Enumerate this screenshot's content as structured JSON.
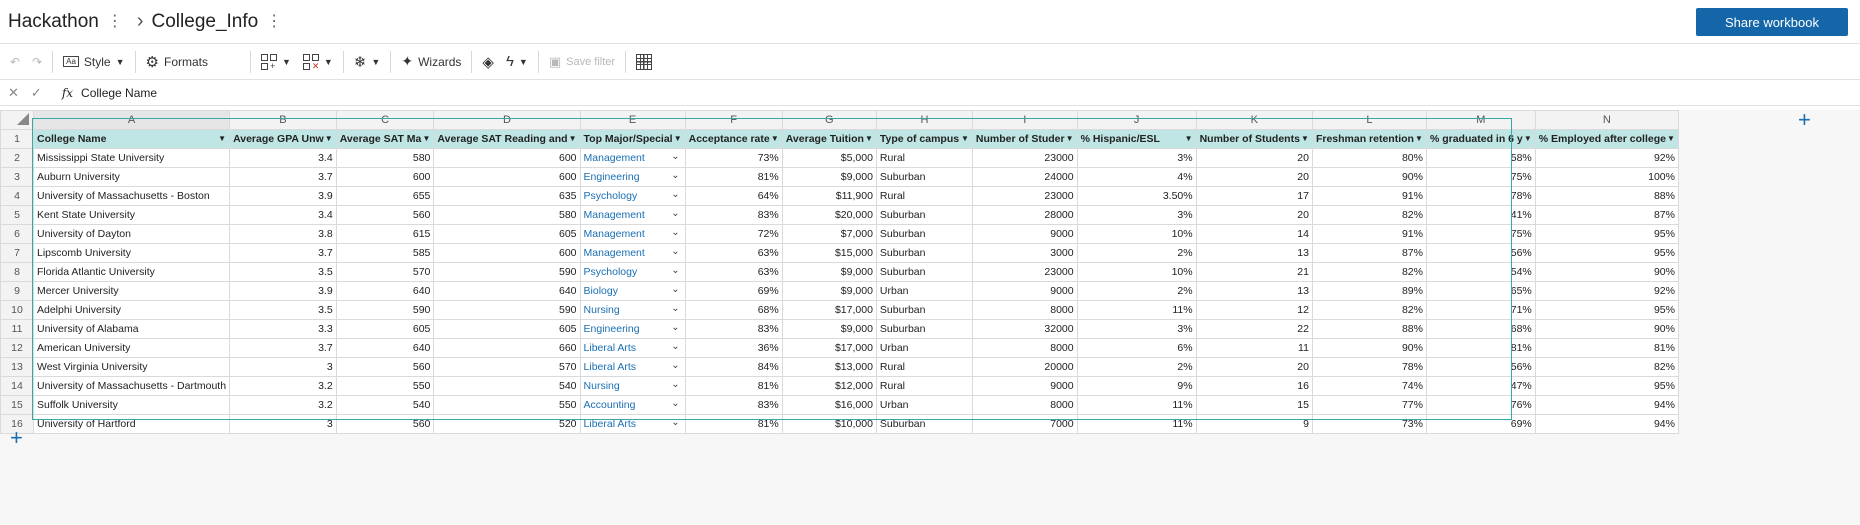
{
  "breadcrumb": {
    "parent": "Hackathon",
    "current": "College_Info"
  },
  "share_label": "Share workbook",
  "toolbar": {
    "style_label": "Style",
    "formats_label": "Formats",
    "wizards_label": "Wizards",
    "save_filter_label": "Save filter"
  },
  "formula_bar": {
    "fx": "fx",
    "value": "College Name"
  },
  "columns": [
    "A",
    "B",
    "C",
    "D",
    "E",
    "F",
    "G",
    "H",
    "I",
    "J",
    "K",
    "L",
    "M",
    "N"
  ],
  "headers": [
    "College Name",
    "Average GPA Unw",
    "Average SAT Ma",
    "Average SAT Reading and",
    "Top Major/Special",
    "Acceptance rate",
    "Average Tuition",
    "Type of campus",
    "Number of Studer",
    "% Hispanic/ESL",
    "Number of Students",
    "Freshman retention",
    "% graduated in 6 y",
    "% Employed after college"
  ],
  "rows": [
    [
      "Mississippi State University",
      "3.4",
      "580",
      "600",
      "Management",
      "73%",
      "$5,000",
      "Rural",
      "23000",
      "3%",
      "20",
      "80%",
      "58%",
      "92%"
    ],
    [
      "Auburn University",
      "3.7",
      "600",
      "600",
      "Engineering",
      "81%",
      "$9,000",
      "Suburban",
      "24000",
      "4%",
      "20",
      "90%",
      "75%",
      "100%"
    ],
    [
      "University of Massachusetts - Boston",
      "3.9",
      "655",
      "635",
      "Psychology",
      "64%",
      "$11,900",
      "Rural",
      "23000",
      "3.50%",
      "17",
      "91%",
      "78%",
      "88%"
    ],
    [
      "Kent State University",
      "3.4",
      "560",
      "580",
      "Management",
      "83%",
      "$20,000",
      "Suburban",
      "28000",
      "3%",
      "20",
      "82%",
      "41%",
      "87%"
    ],
    [
      "University of Dayton",
      "3.8",
      "615",
      "605",
      "Management",
      "72%",
      "$7,000",
      "Suburban",
      "9000",
      "10%",
      "14",
      "91%",
      "75%",
      "95%"
    ],
    [
      "Lipscomb University",
      "3.7",
      "585",
      "600",
      "Management",
      "63%",
      "$15,000",
      "Suburban",
      "3000",
      "2%",
      "13",
      "87%",
      "56%",
      "95%"
    ],
    [
      "Florida Atlantic University",
      "3.5",
      "570",
      "590",
      "Psychology",
      "63%",
      "$9,000",
      "Suburban",
      "23000",
      "10%",
      "21",
      "82%",
      "54%",
      "90%"
    ],
    [
      "Mercer University",
      "3.9",
      "640",
      "640",
      "Biology",
      "69%",
      "$9,000",
      "Urban",
      "9000",
      "2%",
      "13",
      "89%",
      "65%",
      "92%"
    ],
    [
      "Adelphi University",
      "3.5",
      "590",
      "590",
      "Nursing",
      "68%",
      "$17,000",
      "Suburban",
      "8000",
      "11%",
      "12",
      "82%",
      "71%",
      "95%"
    ],
    [
      "University of Alabama",
      "3.3",
      "605",
      "605",
      "Engineering",
      "83%",
      "$9,000",
      "Suburban",
      "32000",
      "3%",
      "22",
      "88%",
      "68%",
      "90%"
    ],
    [
      "American University",
      "3.7",
      "640",
      "660",
      "Liberal Arts",
      "36%",
      "$17,000",
      "Urban",
      "8000",
      "6%",
      "11",
      "90%",
      "81%",
      "81%"
    ],
    [
      "West Virginia University",
      "3",
      "560",
      "570",
      "Liberal Arts",
      "84%",
      "$13,000",
      "Rural",
      "20000",
      "2%",
      "20",
      "78%",
      "56%",
      "82%"
    ],
    [
      "University of Massachusetts - Dartmouth",
      "3.2",
      "550",
      "540",
      "Nursing",
      "81%",
      "$12,000",
      "Rural",
      "9000",
      "9%",
      "16",
      "74%",
      "47%",
      "95%"
    ],
    [
      "Suffolk University",
      "3.2",
      "540",
      "550",
      "Accounting",
      "83%",
      "$16,000",
      "Urban",
      "8000",
      "11%",
      "15",
      "77%",
      "76%",
      "94%"
    ],
    [
      "University of Hartford",
      "3",
      "560",
      "520",
      "Liberal Arts",
      "81%",
      "$10,000",
      "Suburban",
      "7000",
      "11%",
      "9",
      "73%",
      "69%",
      "94%"
    ]
  ],
  "colors": {
    "accent": "#1566a8",
    "header_fill": "#bfe6e4",
    "link": "#1a6fb4",
    "outline": "#3aa8a4"
  }
}
